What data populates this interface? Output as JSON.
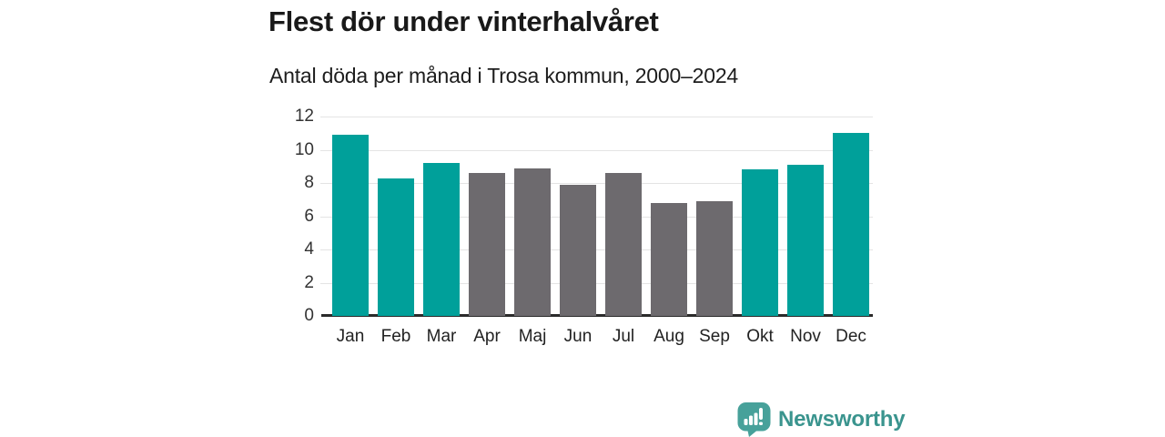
{
  "header": {
    "title": "Flest dör under vinterhalvåret",
    "subtitle": "Antal döda per månad i Trosa kommun, 2000–2024"
  },
  "chart_data": {
    "type": "bar",
    "title": "Flest dör under vinterhalvåret",
    "subtitle": "Antal döda per månad i Trosa kommun, 2000–2024",
    "categories": [
      "Jan",
      "Feb",
      "Mar",
      "Apr",
      "Maj",
      "Jun",
      "Jul",
      "Aug",
      "Sep",
      "Okt",
      "Nov",
      "Dec"
    ],
    "values": [
      10.9,
      8.3,
      9.2,
      8.6,
      8.9,
      7.9,
      8.6,
      6.8,
      6.9,
      8.8,
      9.1,
      11.0
    ],
    "bar_colors": [
      "winter",
      "winter",
      "winter",
      "summer",
      "summer",
      "summer",
      "summer",
      "summer",
      "summer",
      "winter",
      "winter",
      "winter"
    ],
    "colors": {
      "winter": "#00a09a",
      "summer": "#6d6a6e"
    },
    "xlabel": "",
    "ylabel": "",
    "ylim": [
      0,
      12
    ],
    "yticks": [
      0,
      2,
      4,
      6,
      8,
      10,
      12
    ],
    "grid": "horizontal",
    "legend": "none"
  },
  "footer": {
    "brand": "Newsworthy",
    "brand_color": "#3a948e",
    "brand_icon_color": "#47a19a",
    "logo_icon": "newsworthy-bar-chart-speech-bubble-icon"
  }
}
